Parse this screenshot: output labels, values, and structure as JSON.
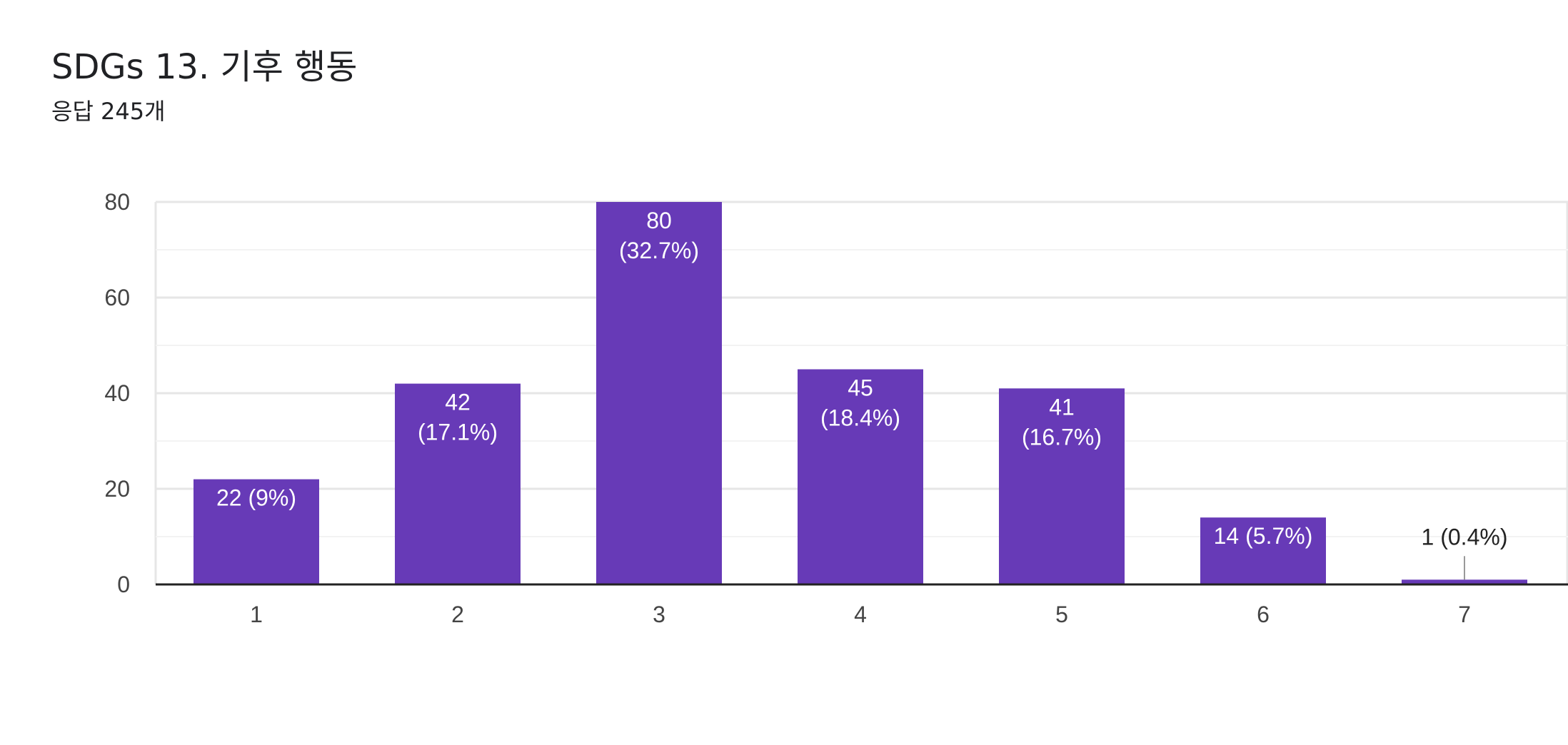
{
  "header": {
    "title": "SDGs 13. 기후 행동",
    "subtitle": "응답 245개"
  },
  "colors": {
    "bar": "#673ab7",
    "label_inside": "#ffffff",
    "label_outside": "#222222",
    "axis": "#222222",
    "grid_major": "#e6e6e6",
    "grid_minor": "#f3f3f3"
  },
  "chart_data": {
    "type": "bar",
    "title": "SDGs 13. 기후 행동",
    "subtitle": "응답 245개",
    "categories": [
      "1",
      "2",
      "3",
      "4",
      "5",
      "6",
      "7"
    ],
    "values": [
      22,
      42,
      80,
      45,
      41,
      14,
      1
    ],
    "value_labels": [
      "22 (9%)",
      "42 (17.1%)",
      "80 (32.7%)",
      "45 (18.4%)",
      "41 (16.7%)",
      "14 (5.7%)",
      "1 (0.4%)"
    ],
    "label_lines": [
      [
        "22 (9%)"
      ],
      [
        "42",
        "(17.1%)"
      ],
      [
        "80",
        "(32.7%)"
      ],
      [
        "45",
        "(18.4%)"
      ],
      [
        "41",
        "(16.7%)"
      ],
      [
        "14 (5.7%)"
      ],
      [
        "1 (0.4%)"
      ]
    ],
    "xlabel": "",
    "ylabel": "",
    "ylim": [
      0,
      80
    ],
    "yticks": [
      0,
      20,
      40,
      60,
      80
    ],
    "grid": true,
    "legend": "none"
  }
}
